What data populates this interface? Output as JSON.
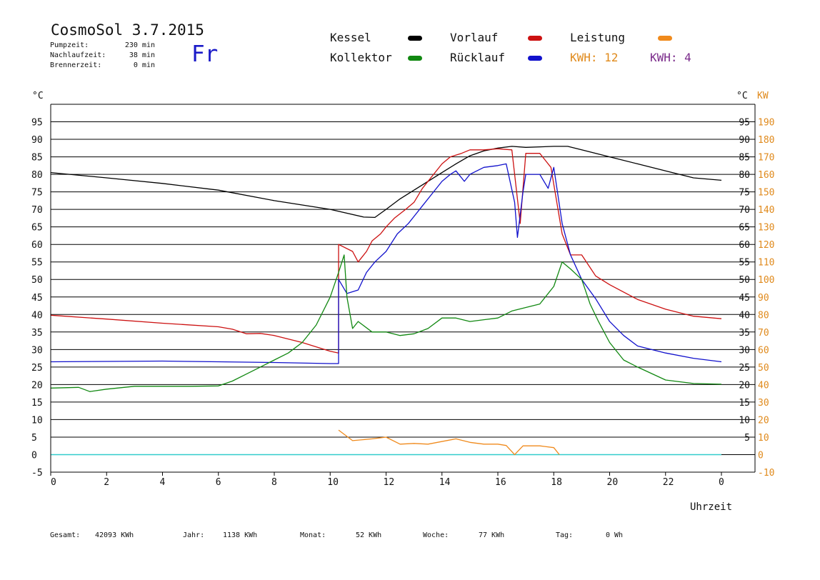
{
  "header": {
    "title": "CosmoSol 3.7.2015",
    "stats": [
      {
        "label": "Pumpzeit:",
        "value": "230 min"
      },
      {
        "label": "Nachlaufzeit:",
        "value": "38 min"
      },
      {
        "label": "Brennerzeit:",
        "value": "0 min"
      }
    ],
    "weekday": "Fr"
  },
  "legend": {
    "kessel": "Kessel",
    "vorlauf": "Vorlauf",
    "leistung": "Leistung",
    "kollektor": "Kollektor",
    "ruecklauf": "Rücklauf",
    "kwh_orange": "KWH: 12",
    "kwh_purple": "KWH: 4"
  },
  "colors": {
    "kessel": "#000000",
    "vorlauf": "#cc1111",
    "leistung": "#f08a1c",
    "kollektor": "#118811",
    "ruecklauf": "#1111cc",
    "kwh_orange": "#e08a1c",
    "kwh_purple": "#7a2a8a",
    "baseline": "#33cccc",
    "kw_axis": "#e08a1c"
  },
  "footer": [
    {
      "label": "Gesamt:",
      "value": "42093 KWh"
    },
    {
      "label": "Jahr:",
      "value": "1138 KWh"
    },
    {
      "label": "Monat:",
      "value": "52 KWh"
    },
    {
      "label": "Woche:",
      "value": "77 KWh"
    },
    {
      "label": "Tag:",
      "value": "0 Wh"
    }
  ],
  "chart_data": {
    "type": "line",
    "xlabel": "Uhrzeit",
    "ylabel_left": "°C",
    "ylabel_right_celsius": "°C",
    "ylabel_right_kw": "KW",
    "xlim": [
      0,
      24
    ],
    "ylim": [
      -5,
      100
    ],
    "grid": true,
    "x_ticks": [
      "0",
      "2",
      "4",
      "6",
      "8",
      "10",
      "12",
      "14",
      "16",
      "18",
      "20",
      "22",
      "0"
    ],
    "y_ticks_left": [
      -5,
      0,
      5,
      10,
      15,
      20,
      25,
      30,
      35,
      40,
      45,
      50,
      55,
      60,
      65,
      70,
      75,
      80,
      85,
      90,
      95
    ],
    "y_ticks_right_celsius": [
      5,
      10,
      15,
      20,
      25,
      30,
      35,
      40,
      45,
      50,
      55,
      60,
      65,
      70,
      75,
      80,
      85,
      90,
      95
    ],
    "y_ticks_right_kw": [
      -10,
      0,
      10,
      20,
      30,
      40,
      50,
      60,
      70,
      80,
      90,
      100,
      110,
      120,
      130,
      140,
      150,
      160,
      170,
      180,
      190
    ],
    "series": [
      {
        "name": "Kessel",
        "color": "#000000",
        "points": [
          [
            0,
            80.5
          ],
          [
            2,
            79
          ],
          [
            4,
            77.4
          ],
          [
            6,
            75.5
          ],
          [
            8,
            72.5
          ],
          [
            10,
            70
          ],
          [
            11.2,
            67.8
          ],
          [
            11.6,
            67.7
          ],
          [
            12,
            70
          ],
          [
            12.5,
            73
          ],
          [
            13,
            75.5
          ],
          [
            13.5,
            78
          ],
          [
            14,
            80.5
          ],
          [
            14.5,
            83
          ],
          [
            15,
            85.3
          ],
          [
            15.5,
            86.7
          ],
          [
            16,
            87.5
          ],
          [
            16.5,
            88
          ],
          [
            17,
            87.7
          ],
          [
            18,
            88
          ],
          [
            18.5,
            88
          ],
          [
            19,
            87
          ],
          [
            20,
            85
          ],
          [
            21,
            83
          ],
          [
            22,
            81
          ],
          [
            23,
            79
          ],
          [
            24,
            78.3
          ]
        ]
      },
      {
        "name": "Vorlauf",
        "color": "#cc1111",
        "points": [
          [
            0,
            39.8
          ],
          [
            2,
            38.7
          ],
          [
            4,
            37.5
          ],
          [
            6,
            36.5
          ],
          [
            6.5,
            35.8
          ],
          [
            7,
            34.5
          ],
          [
            7.5,
            34.6
          ],
          [
            8,
            34
          ],
          [
            9,
            32
          ],
          [
            10,
            29.5
          ],
          [
            10.3,
            29
          ],
          [
            10.3,
            60
          ],
          [
            10.8,
            58
          ],
          [
            11,
            55
          ],
          [
            11.3,
            58
          ],
          [
            11.5,
            61
          ],
          [
            11.8,
            63
          ],
          [
            12,
            65
          ],
          [
            12.3,
            67.5
          ],
          [
            12.7,
            70
          ],
          [
            13,
            72
          ],
          [
            13.3,
            76
          ],
          [
            13.7,
            80
          ],
          [
            14,
            83
          ],
          [
            14.3,
            85
          ],
          [
            14.7,
            86
          ],
          [
            15,
            87
          ],
          [
            15.5,
            87
          ],
          [
            16,
            87.3
          ],
          [
            16.5,
            87
          ],
          [
            16.8,
            66
          ],
          [
            17,
            86
          ],
          [
            17.5,
            86
          ],
          [
            17.9,
            82
          ],
          [
            18.3,
            63
          ],
          [
            18.6,
            57
          ],
          [
            19,
            57
          ],
          [
            19.5,
            51
          ],
          [
            20,
            48.5
          ],
          [
            21,
            44.3
          ],
          [
            22,
            41.5
          ],
          [
            23,
            39.5
          ],
          [
            24,
            38.8
          ]
        ]
      },
      {
        "name": "Rücklauf",
        "color": "#1111cc",
        "points": [
          [
            0,
            26.5
          ],
          [
            2,
            26.6
          ],
          [
            4,
            26.7
          ],
          [
            6,
            26.5
          ],
          [
            8,
            26.3
          ],
          [
            10,
            26
          ],
          [
            10.3,
            26
          ],
          [
            10.3,
            50
          ],
          [
            10.6,
            46
          ],
          [
            11,
            47
          ],
          [
            11.3,
            52
          ],
          [
            11.6,
            55
          ],
          [
            12,
            58
          ],
          [
            12.4,
            63
          ],
          [
            12.8,
            66
          ],
          [
            13,
            68
          ],
          [
            13.3,
            71
          ],
          [
            13.7,
            75
          ],
          [
            14,
            78
          ],
          [
            14.3,
            80
          ],
          [
            14.5,
            81
          ],
          [
            14.8,
            78
          ],
          [
            15,
            80
          ],
          [
            15.5,
            82
          ],
          [
            16,
            82.5
          ],
          [
            16.3,
            83
          ],
          [
            16.6,
            72
          ],
          [
            16.7,
            62
          ],
          [
            16.9,
            75
          ],
          [
            17,
            80
          ],
          [
            17.5,
            80
          ],
          [
            17.8,
            76
          ],
          [
            18,
            82
          ],
          [
            18.3,
            66
          ],
          [
            18.6,
            57
          ],
          [
            19,
            50
          ],
          [
            19.5,
            44.5
          ],
          [
            20,
            38
          ],
          [
            20.5,
            34
          ],
          [
            21,
            31
          ],
          [
            22,
            29
          ],
          [
            23,
            27.5
          ],
          [
            24,
            26.5
          ]
        ]
      },
      {
        "name": "Kollektor",
        "color": "#118811",
        "points": [
          [
            0,
            19
          ],
          [
            1,
            19.2
          ],
          [
            1.4,
            18
          ],
          [
            2,
            18.7
          ],
          [
            3,
            19.5
          ],
          [
            4,
            19.5
          ],
          [
            5,
            19.5
          ],
          [
            6,
            19.6
          ],
          [
            6.5,
            21
          ],
          [
            7,
            23
          ],
          [
            7.5,
            25
          ],
          [
            8,
            27
          ],
          [
            8.5,
            29
          ],
          [
            9,
            32
          ],
          [
            9.5,
            37
          ],
          [
            10,
            45
          ],
          [
            10.3,
            52
          ],
          [
            10.5,
            57
          ],
          [
            10.6,
            45
          ],
          [
            10.8,
            36
          ],
          [
            11,
            38
          ],
          [
            11.5,
            35
          ],
          [
            12,
            35
          ],
          [
            12.5,
            34
          ],
          [
            13,
            34.5
          ],
          [
            13.5,
            36
          ],
          [
            14,
            39
          ],
          [
            14.5,
            39
          ],
          [
            15,
            38
          ],
          [
            15.5,
            38.5
          ],
          [
            16,
            39
          ],
          [
            16.5,
            41
          ],
          [
            17,
            42
          ],
          [
            17.5,
            43
          ],
          [
            18,
            48
          ],
          [
            18.3,
            55
          ],
          [
            18.6,
            53
          ],
          [
            19,
            50
          ],
          [
            19.3,
            43
          ],
          [
            19.6,
            38
          ],
          [
            20,
            32
          ],
          [
            20.5,
            27
          ],
          [
            21,
            25
          ],
          [
            22,
            21.3
          ],
          [
            23,
            20.3
          ],
          [
            24,
            20.1
          ]
        ]
      },
      {
        "name": "Leistung",
        "color": "#f08a1c",
        "points": [
          [
            10.3,
            7
          ],
          [
            10.8,
            4
          ],
          [
            11.5,
            4.5
          ],
          [
            12,
            5
          ],
          [
            12.5,
            3
          ],
          [
            13,
            3.2
          ],
          [
            13.5,
            3
          ],
          [
            14.5,
            4.5
          ],
          [
            15,
            3.5
          ],
          [
            15.5,
            3
          ],
          [
            16,
            3
          ],
          [
            16.3,
            2.6
          ],
          [
            16.6,
            0
          ],
          [
            16.9,
            2.5
          ],
          [
            17.5,
            2.5
          ],
          [
            18,
            2
          ],
          [
            18.2,
            0
          ]
        ]
      }
    ]
  }
}
